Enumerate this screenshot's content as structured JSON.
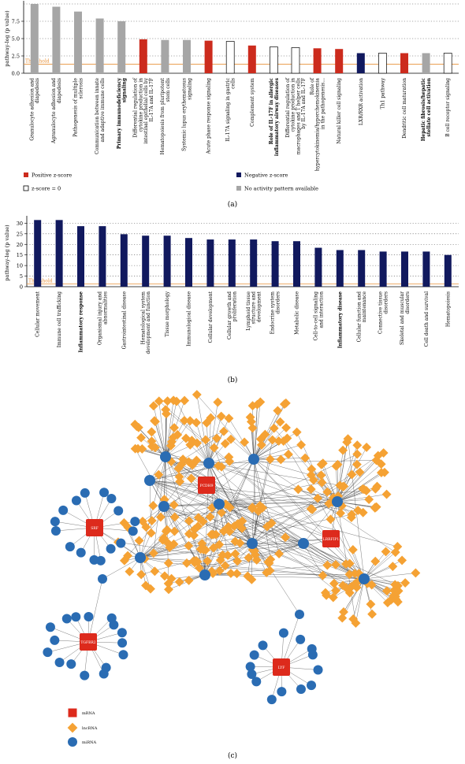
{
  "charts": {
    "a": {
      "panel_label": "(a)",
      "ylabel": "pathway-log (p value)",
      "ytick_labels": [
        "0.0",
        "2.5",
        "5.0",
        "7.5"
      ],
      "threshold_label": "Threshold"
    },
    "b": {
      "panel_label": "(b)",
      "ylabel": "pathway-log (p value)",
      "ytick_labels": [
        "0",
        "5",
        "10",
        "15",
        "20",
        "25",
        "30"
      ],
      "threshold_label": "Threshold"
    },
    "c": {
      "panel_label": "(c)"
    }
  },
  "chart_data": [
    {
      "type": "bar",
      "ylim": [
        0,
        10
      ],
      "grid": "dotted horizontal",
      "threshold": 1.3,
      "colors": {
        "positive": "#cc2b1d",
        "negative": "#11195e",
        "none": "#a6a6a6",
        "zero": "#ffffff",
        "threshold": "#e8923a"
      },
      "categories": [
        "Granulocyte adhesion and diapedesis",
        "Agranulocyte adhesion and diapedesis",
        "Pathogenesis of multiple sclerosis",
        "Communication between innate and adaptive immune cells",
        "Primary immunodeficiency signaling",
        "Differential regulation of cytokine production in intestinal epithelial cells by IL-17A and IL-17F",
        "Hematopoiesis from pluripotent stem cells",
        "Systemic lupus erythematosus signaling",
        "Acute phase response signaling",
        "IL-17A signaling in gastric cells",
        "Complement system",
        "Role of IL-17F in allergic inflammatory airway diseases",
        "Differential regulation of cytokine production in macrophages and T helper cells by IL-17A and IL-17F",
        "Role of hypercytokinemia/hyperchemokinemia in the pathogenesis...",
        "Natural killer cell signaling",
        "LXR/RXR activation",
        "Th1 pathway",
        "Dendritic cell maturation",
        "Hepatic fibrosis/hepatic stellate cell activation",
        "B cell receptor signaling"
      ],
      "series": [
        {
          "name": "pathway",
          "values": [
            10.0,
            9.6,
            8.9,
            7.9,
            7.5,
            4.9,
            4.8,
            4.8,
            4.7,
            4.6,
            4.0,
            3.8,
            3.7,
            3.6,
            3.5,
            2.9,
            2.9,
            2.9,
            2.9,
            2.9
          ],
          "z": [
            "none",
            "none",
            "none",
            "none",
            "none",
            "positive",
            "none",
            "none",
            "positive",
            "zero",
            "positive",
            "zero",
            "zero",
            "positive",
            "positive",
            "negative",
            "zero",
            "positive",
            "none",
            "zero"
          ]
        }
      ],
      "bold_categories": [
        4,
        11,
        18
      ],
      "legend": [
        {
          "key": "positive",
          "label": "Positive z-score"
        },
        {
          "key": "zero",
          "label": "z-score = 0"
        },
        {
          "key": "negative",
          "label": "Negative z-score"
        },
        {
          "key": "none",
          "label": "No activity pattern available"
        }
      ]
    },
    {
      "type": "bar",
      "ylim": [
        0,
        32
      ],
      "grid": "dotted horizontal",
      "threshold": 1.3,
      "colors": {
        "bar": "#11195e",
        "threshold": "#e8923a"
      },
      "categories": [
        "Cellular movement",
        "Immune cell trafficking",
        "Inflammatory response",
        "Organismal injury and abnormalities",
        "Gastrointestinal disease",
        "Hematological system development and function",
        "Tissue morphology",
        "Immunological disease",
        "Cellular development",
        "Cellular growth and proliferation",
        "Lymphoid tissue structure and development",
        "Endocrine system disorders",
        "Metabolic disease",
        "Cell-to-cell signaling and interaction",
        "Inflammatory disease",
        "Cellular function and maintenance",
        "Connective tissue disorders",
        "Skeletal and muscular disorders",
        "Cell death and survival",
        "Hematopoiesis"
      ],
      "series": [
        {
          "name": "pathway",
          "values": [
            31.5,
            31.5,
            28.6,
            28.6,
            24.8,
            24.1,
            24.1,
            23.0,
            22.3,
            22.3,
            22.3,
            21.5,
            21.5,
            18.4,
            17.3,
            17.3,
            16.6,
            16.6,
            16.6,
            15.0
          ]
        }
      ],
      "bold_categories": [
        2,
        14
      ]
    }
  ],
  "network": {
    "colors": {
      "mRNA": "#dd2a1c",
      "lncRNA": "#f5a234",
      "miRNA": "#2a6cb3"
    },
    "legend": [
      {
        "key": "mRNA",
        "shape": "square",
        "label": "mRNA"
      },
      {
        "key": "lncRNA",
        "shape": "diamond",
        "label": "lncRNA"
      },
      {
        "key": "miRNA",
        "shape": "circle",
        "label": "miRNA"
      }
    ],
    "mrna_labels": [
      "SRF",
      "PCDH9",
      "LRRFIP1",
      "TGFBR2",
      "LYF"
    ]
  }
}
